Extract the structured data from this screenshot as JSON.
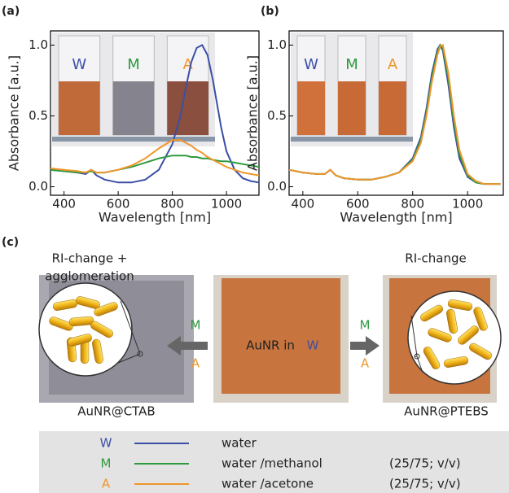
{
  "chart_data": [
    {
      "type": "line",
      "label": "(a)",
      "x_label": "Wavelength [nm]",
      "y_label": "Absorbance [a.u.]",
      "x": [
        350,
        400,
        450,
        480,
        500,
        520,
        550,
        600,
        650,
        700,
        750,
        800,
        830,
        850,
        870,
        890,
        910,
        930,
        950,
        980,
        1000,
        1030,
        1060,
        1090,
        1120
      ],
      "series": [
        {
          "name": "W",
          "color": "#3b4fa6",
          "values": [
            0.12,
            0.11,
            0.1,
            0.09,
            0.12,
            0.08,
            0.05,
            0.03,
            0.03,
            0.05,
            0.12,
            0.3,
            0.5,
            0.7,
            0.88,
            0.98,
            1.0,
            0.93,
            0.75,
            0.42,
            0.25,
            0.12,
            0.06,
            0.04,
            0.03
          ]
        },
        {
          "name": "M",
          "color": "#2e9a3e",
          "values": [
            0.12,
            0.11,
            0.1,
            0.1,
            0.11,
            0.1,
            0.1,
            0.12,
            0.14,
            0.17,
            0.2,
            0.22,
            0.22,
            0.22,
            0.21,
            0.21,
            0.2,
            0.2,
            0.19,
            0.18,
            0.18,
            0.17,
            0.16,
            0.15,
            0.14
          ]
        },
        {
          "name": "A",
          "color": "#f0962a",
          "values": [
            0.13,
            0.12,
            0.11,
            0.1,
            0.12,
            0.1,
            0.1,
            0.12,
            0.15,
            0.2,
            0.27,
            0.33,
            0.33,
            0.31,
            0.29,
            0.26,
            0.24,
            0.21,
            0.19,
            0.16,
            0.14,
            0.12,
            0.1,
            0.09,
            0.08
          ]
        }
      ],
      "xlim": [
        350,
        1120
      ],
      "ylim": [
        -0.06,
        1.1
      ],
      "xticks": [
        400,
        600,
        800,
        1000
      ],
      "yticks": [
        {
          "value": 0,
          "label": "0.0"
        },
        0.5,
        {
          "value": 1,
          "label": "1.0"
        }
      ]
    },
    {
      "type": "line",
      "label": "(b)",
      "x_label": "Wavelength [nm]",
      "y_label": "Absorbance [a.u.]",
      "x": [
        350,
        400,
        450,
        480,
        500,
        520,
        550,
        600,
        650,
        700,
        750,
        800,
        830,
        850,
        870,
        890,
        900,
        910,
        930,
        950,
        970,
        1000,
        1030,
        1060,
        1090,
        1120
      ],
      "series": [
        {
          "name": "W",
          "color": "#3b4fa6",
          "values": [
            0.12,
            0.1,
            0.09,
            0.09,
            0.12,
            0.08,
            0.06,
            0.05,
            0.05,
            0.07,
            0.1,
            0.2,
            0.35,
            0.55,
            0.8,
            0.97,
            1.0,
            0.96,
            0.72,
            0.42,
            0.2,
            0.07,
            0.03,
            0.02,
            0.02,
            0.02
          ]
        },
        {
          "name": "M",
          "color": "#2e9a3e",
          "values": [
            0.12,
            0.1,
            0.09,
            0.09,
            0.12,
            0.08,
            0.06,
            0.05,
            0.05,
            0.07,
            0.1,
            0.19,
            0.33,
            0.52,
            0.77,
            0.95,
            1.0,
            0.98,
            0.76,
            0.46,
            0.23,
            0.08,
            0.03,
            0.02,
            0.02,
            0.02
          ]
        },
        {
          "name": "A",
          "color": "#f0962a",
          "values": [
            0.12,
            0.1,
            0.09,
            0.09,
            0.12,
            0.08,
            0.06,
            0.05,
            0.05,
            0.07,
            0.1,
            0.18,
            0.31,
            0.5,
            0.74,
            0.93,
            0.99,
            1.0,
            0.8,
            0.5,
            0.26,
            0.09,
            0.04,
            0.02,
            0.02,
            0.02
          ]
        }
      ],
      "xlim": [
        350,
        1130
      ],
      "ylim": [
        -0.06,
        1.1
      ],
      "xticks": [
        400,
        600,
        800,
        1000
      ],
      "yticks": [
        {
          "value": 0,
          "label": "0.0"
        },
        0.5,
        {
          "value": 1,
          "label": "1.0"
        }
      ]
    }
  ],
  "diagram": {
    "label": "(c)",
    "left_caption": [
      "RI-change +",
      "agglomeration"
    ],
    "right_caption": "RI-change",
    "center_text": "AuNR in",
    "left_sample": "AuNR@CTAB",
    "right_sample": "AuNR@PTEBS"
  },
  "legend_table": {
    "rows": [
      {
        "solvent": "water"
      },
      {
        "solvent": "water /methanol",
        "ratio": "(25/75; v/v)"
      },
      {
        "solvent": "water /acetone",
        "ratio": "(25/75; v/v)"
      }
    ]
  }
}
